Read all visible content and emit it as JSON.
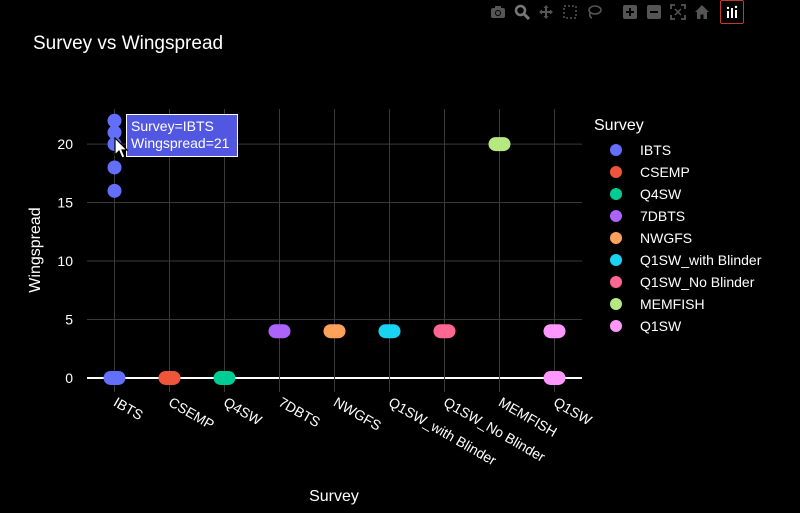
{
  "toolbar": {
    "icons": [
      "camera-icon",
      "zoom-icon",
      "pan-icon",
      "box-select-icon",
      "lasso-icon",
      "zoom-in-icon",
      "zoom-out-icon",
      "autoscale-icon",
      "reset-axes-icon",
      "plotly-logo-icon"
    ]
  },
  "tooltip": {
    "line1": "Survey=IBTS",
    "line2": "Wingspread=21"
  },
  "chart_data": {
    "type": "scatter",
    "title": "Survey vs Wingspread",
    "xlabel": "Survey",
    "ylabel": "Wingspread",
    "legend_title": "Survey",
    "legend_position": "right",
    "grid": true,
    "ylim": [
      -1.2,
      23
    ],
    "yticks": [
      0,
      5,
      10,
      15,
      20
    ],
    "categories": [
      "IBTS",
      "CSEMP",
      "Q4SW",
      "7DBTS",
      "NWGFS",
      "Q1SW_with Blinder",
      "Q1SW_No Blinder",
      "MEMFISH",
      "Q1SW"
    ],
    "series": [
      {
        "name": "IBTS",
        "color": "#636efa",
        "x": "IBTS",
        "values": [
          0,
          16,
          18,
          20,
          21,
          22
        ]
      },
      {
        "name": "CSEMP",
        "color": "#ef553b",
        "x": "CSEMP",
        "values": [
          0
        ]
      },
      {
        "name": "Q4SW",
        "color": "#00cc96",
        "x": "Q4SW",
        "values": [
          0
        ]
      },
      {
        "name": "7DBTS",
        "color": "#ab63fa",
        "x": "7DBTS",
        "values": [
          4
        ]
      },
      {
        "name": "NWGFS",
        "color": "#ffa15a",
        "x": "NWGFS",
        "values": [
          4
        ]
      },
      {
        "name": "Q1SW_with Blinder",
        "color": "#19d3f3",
        "x": "Q1SW_with Blinder",
        "values": [
          4
        ]
      },
      {
        "name": "Q1SW_No Blinder",
        "color": "#ff6692",
        "x": "Q1SW_No Blinder",
        "values": [
          4
        ]
      },
      {
        "name": "MEMFISH",
        "color": "#b6e880",
        "x": "MEMFISH",
        "values": [
          20
        ]
      },
      {
        "name": "Q1SW",
        "color": "#ff97ff",
        "x": "Q1SW",
        "values": [
          0,
          4
        ]
      }
    ]
  }
}
